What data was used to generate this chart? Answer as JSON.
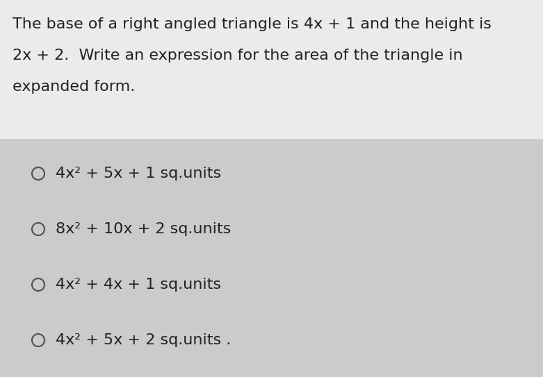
{
  "background_color": "#cbcbcb",
  "question_bg_color": "#ebebeb",
  "question_text_lines": [
    "The base of a right angled triangle is 4x + 1 and the height is",
    "2x + 2.  Write an expression for the area of the triangle in",
    "expanded form."
  ],
  "options": [
    "4x² + 5x + 1 sq.units",
    "8x² + 10x + 2 sq.units",
    "4x² + 4x + 1 sq.units",
    "4x² + 5x + 2 sq.units"
  ],
  "circle_color": "#555555",
  "text_color": "#222222",
  "question_font_size": 16,
  "option_font_size": 16,
  "fig_width": 7.81,
  "fig_height": 5.43,
  "dpi": 100
}
